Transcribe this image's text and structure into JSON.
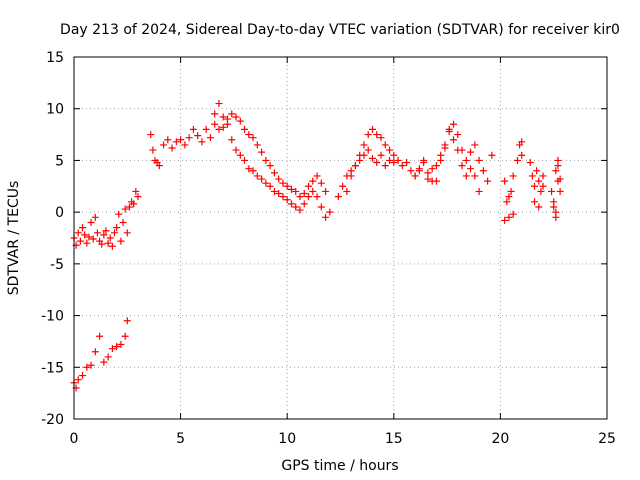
{
  "chart_data": {
    "type": "scatter",
    "title": "Day 213 of 2024, Sidereal Day-to-day VTEC variation (SDTVAR) for receiver kir0",
    "xlabel": "GPS time / hours",
    "ylabel": "SDTVAR / TECUs",
    "xlim": [
      0,
      25
    ],
    "ylim": [
      -20,
      15
    ],
    "xticks": [
      0,
      5,
      10,
      15,
      20,
      25
    ],
    "yticks": [
      -20,
      -15,
      -10,
      -5,
      0,
      5,
      10,
      15
    ],
    "grid": true,
    "marker": "+",
    "color": "#ff0000",
    "series": [
      {
        "name": "SDTVAR",
        "x": [
          0.0,
          0.1,
          0.2,
          0.3,
          0.4,
          0.5,
          0.6,
          0.7,
          0.8,
          0.9,
          1.0,
          1.1,
          1.2,
          1.3,
          1.4,
          1.5,
          1.6,
          1.7,
          1.8,
          1.9,
          2.0,
          2.1,
          2.2,
          2.3,
          2.4,
          2.5,
          2.6,
          2.7,
          2.8,
          2.9,
          3.0,
          0.0,
          0.1,
          0.2,
          0.4,
          0.6,
          0.8,
          1.0,
          1.2,
          1.4,
          1.6,
          1.8,
          2.0,
          2.2,
          2.4,
          2.5,
          3.6,
          3.7,
          3.8,
          3.9,
          4.0,
          4.2,
          4.4,
          4.6,
          4.8,
          5.0,
          5.2,
          5.4,
          5.6,
          5.8,
          6.0,
          6.2,
          6.4,
          6.6,
          6.8,
          7.0,
          7.2,
          7.4,
          7.6,
          7.8,
          8.0,
          8.2,
          8.4,
          8.6,
          8.8,
          9.0,
          9.2,
          9.4,
          9.6,
          9.8,
          10.0,
          10.2,
          10.4,
          10.6,
          10.8,
          11.0,
          11.2,
          11.4,
          11.6,
          11.8,
          12.0,
          6.6,
          6.8,
          7.0,
          7.2,
          7.4,
          7.6,
          7.8,
          8.0,
          8.2,
          8.4,
          8.6,
          8.8,
          9.0,
          9.2,
          9.4,
          9.6,
          9.8,
          10.0,
          10.2,
          10.4,
          10.6,
          10.8,
          11.0,
          11.2,
          11.4,
          11.6,
          11.8,
          12.4,
          12.6,
          12.8,
          13.0,
          13.2,
          13.4,
          13.6,
          13.8,
          14.0,
          14.2,
          14.4,
          14.6,
          14.8,
          15.0,
          15.2,
          15.4,
          15.6,
          15.8,
          16.0,
          16.2,
          16.4,
          16.6,
          16.8,
          17.0,
          17.2,
          17.4,
          17.6,
          17.8,
          18.0,
          18.2,
          18.4,
          18.6,
          18.8,
          19.0,
          19.2,
          19.4,
          19.6,
          12.8,
          13.0,
          13.2,
          13.4,
          13.6,
          13.8,
          14.0,
          14.2,
          14.4,
          14.6,
          14.8,
          15.0,
          16.0,
          16.2,
          16.4,
          16.6,
          16.8,
          17.0,
          17.2,
          17.4,
          17.6,
          17.8,
          18.0,
          18.2,
          18.4,
          18.6,
          18.8,
          19.0,
          20.2,
          20.3,
          20.4,
          20.5,
          20.6,
          20.2,
          20.4,
          20.6,
          20.8,
          20.9,
          21.0,
          21.0,
          21.4,
          21.5,
          21.6,
          21.7,
          21.8,
          21.9,
          22.0,
          21.6,
          21.8,
          22.0,
          22.4,
          22.5,
          22.6,
          22.7,
          22.8,
          22.5,
          22.6,
          22.7,
          22.8,
          22.6,
          22.7
        ],
        "y": [
          -2.5,
          -3.2,
          -2.0,
          -2.8,
          -1.5,
          -2.2,
          -3.0,
          -2.4,
          -1.0,
          -2.6,
          -0.5,
          -2.0,
          -2.8,
          -3.1,
          -2.2,
          -1.8,
          -3.0,
          -2.5,
          -3.3,
          -2.0,
          -1.5,
          -0.2,
          -2.8,
          -1.0,
          0.3,
          -2.0,
          0.5,
          1.0,
          0.8,
          2.0,
          1.5,
          -16.5,
          -17.0,
          -16.2,
          -15.8,
          -15.0,
          -14.8,
          -13.5,
          -12.0,
          -14.5,
          -14.0,
          -13.2,
          -13.0,
          -12.8,
          -12.0,
          -10.5,
          7.5,
          6.0,
          5.0,
          4.8,
          4.5,
          6.5,
          7.0,
          6.2,
          6.8,
          7.0,
          6.5,
          7.2,
          8.0,
          7.4,
          6.8,
          8.0,
          7.2,
          9.5,
          10.5,
          9.2,
          8.5,
          7.0,
          6.0,
          5.5,
          5.0,
          4.2,
          4.0,
          3.5,
          3.2,
          2.8,
          2.5,
          2.0,
          1.8,
          1.5,
          1.2,
          0.8,
          0.5,
          0.2,
          0.8,
          1.5,
          2.0,
          1.5,
          0.5,
          -0.5,
          0.0,
          8.5,
          8.0,
          8.2,
          9.0,
          9.5,
          9.2,
          8.8,
          8.0,
          7.5,
          7.2,
          6.5,
          5.8,
          5.0,
          4.5,
          3.8,
          3.2,
          2.8,
          2.5,
          2.2,
          2.0,
          1.5,
          1.8,
          2.5,
          3.0,
          3.5,
          2.8,
          2.0,
          1.5,
          2.5,
          3.5,
          4.0,
          4.5,
          5.5,
          6.5,
          7.5,
          8.0,
          7.5,
          7.2,
          6.5,
          6.0,
          5.5,
          5.0,
          4.5,
          4.8,
          4.0,
          3.5,
          4.2,
          4.8,
          3.8,
          3.0,
          4.5,
          5.5,
          6.5,
          7.8,
          8.5,
          7.5,
          6.0,
          5.0,
          5.8,
          6.5,
          5.0,
          4.0,
          3.0,
          5.5,
          2.0,
          3.5,
          4.5,
          5.0,
          5.5,
          6.0,
          5.2,
          4.8,
          5.5,
          4.5,
          5.0,
          4.8,
          3.5,
          4.0,
          5.0,
          3.2,
          4.2,
          3.0,
          5.0,
          6.2,
          8.0,
          7.0,
          6.0,
          4.5,
          3.5,
          4.2,
          3.5,
          2.0,
          3.0,
          1.0,
          -0.5,
          2.0,
          -0.2,
          -0.8,
          1.5,
          3.5,
          5.0,
          6.5,
          5.5,
          6.8,
          4.8,
          3.5,
          2.5,
          4.0,
          3.0,
          2.0,
          3.5,
          1.0,
          0.5,
          2.5,
          2.0,
          0.5,
          4.0,
          5.0,
          3.2,
          1.0,
          0.0,
          3.0,
          2.0,
          -0.5,
          4.5
        ]
      }
    ]
  }
}
